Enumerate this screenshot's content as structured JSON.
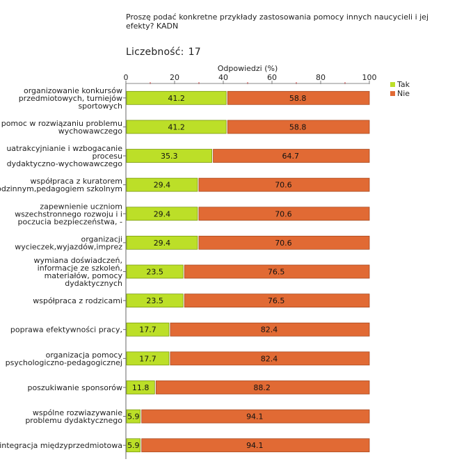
{
  "header": {
    "question": "Proszę podać konkretne przykłady zastosowania pomocy innych naucycieli i jej efekty? KADN",
    "count_label": "Liczebność:",
    "count_value": "17"
  },
  "chart_data": {
    "type": "bar",
    "orientation": "horizontal",
    "stacked": true,
    "title": "Proszę podać konkretne przykłady zastosowania pomocy innych naucycieli i jej efekty? KADN",
    "xlabel": "Odpowiedzi (%)",
    "xlim": [
      0,
      100
    ],
    "xticks": [
      0,
      20,
      40,
      60,
      80,
      100
    ],
    "legend_position": "top-right",
    "categories": [
      [
        "organizowanie konkursów",
        "przedmiotowych, turniejów",
        "sportowych"
      ],
      [
        "pomoc w rozwiązaniu problemu",
        "wychowawczego"
      ],
      [
        "uatrakcyjnianie i wzbogacanie",
        "procesu",
        "dydaktyczno-wychowawczego"
      ],
      [
        "współpraca z kuratorem",
        "rodzinnym,pedagogiem  szkolnym"
      ],
      [
        "zapewnienie uczniom",
        "wszechstronnego rozwoju i i",
        "poczucia bezpieczeństwa, -"
      ],
      [
        "organizacji",
        "wycieczek,wyjazdów,imprez"
      ],
      [
        "wymiana doświadczeń,",
        "informacje ze szkoleń,",
        "materiałów, pomocy",
        "dydaktycznych"
      ],
      [
        "współpraca z rodzicami"
      ],
      [
        "poprawa efektywności pracy,"
      ],
      [
        "organizacja pomocy",
        "psychologiczno-pedagogicznej"
      ],
      [
        "poszukiwanie sponsorów"
      ],
      [
        "wspólne rozwiazywanie",
        "problemu dydaktycznego"
      ],
      [
        "integracja międzyprzedmiotowa"
      ]
    ],
    "series": [
      {
        "name": "Tak",
        "color": "#bcdf28",
        "values": [
          41.2,
          41.2,
          35.3,
          29.4,
          29.4,
          29.4,
          23.5,
          23.5,
          17.7,
          17.7,
          11.8,
          5.9,
          5.9
        ]
      },
      {
        "name": "Nie",
        "color": "#e16a34",
        "values": [
          58.8,
          58.8,
          64.7,
          70.6,
          70.6,
          70.6,
          76.5,
          76.5,
          82.4,
          82.4,
          88.2,
          94.1,
          94.1
        ]
      }
    ]
  }
}
